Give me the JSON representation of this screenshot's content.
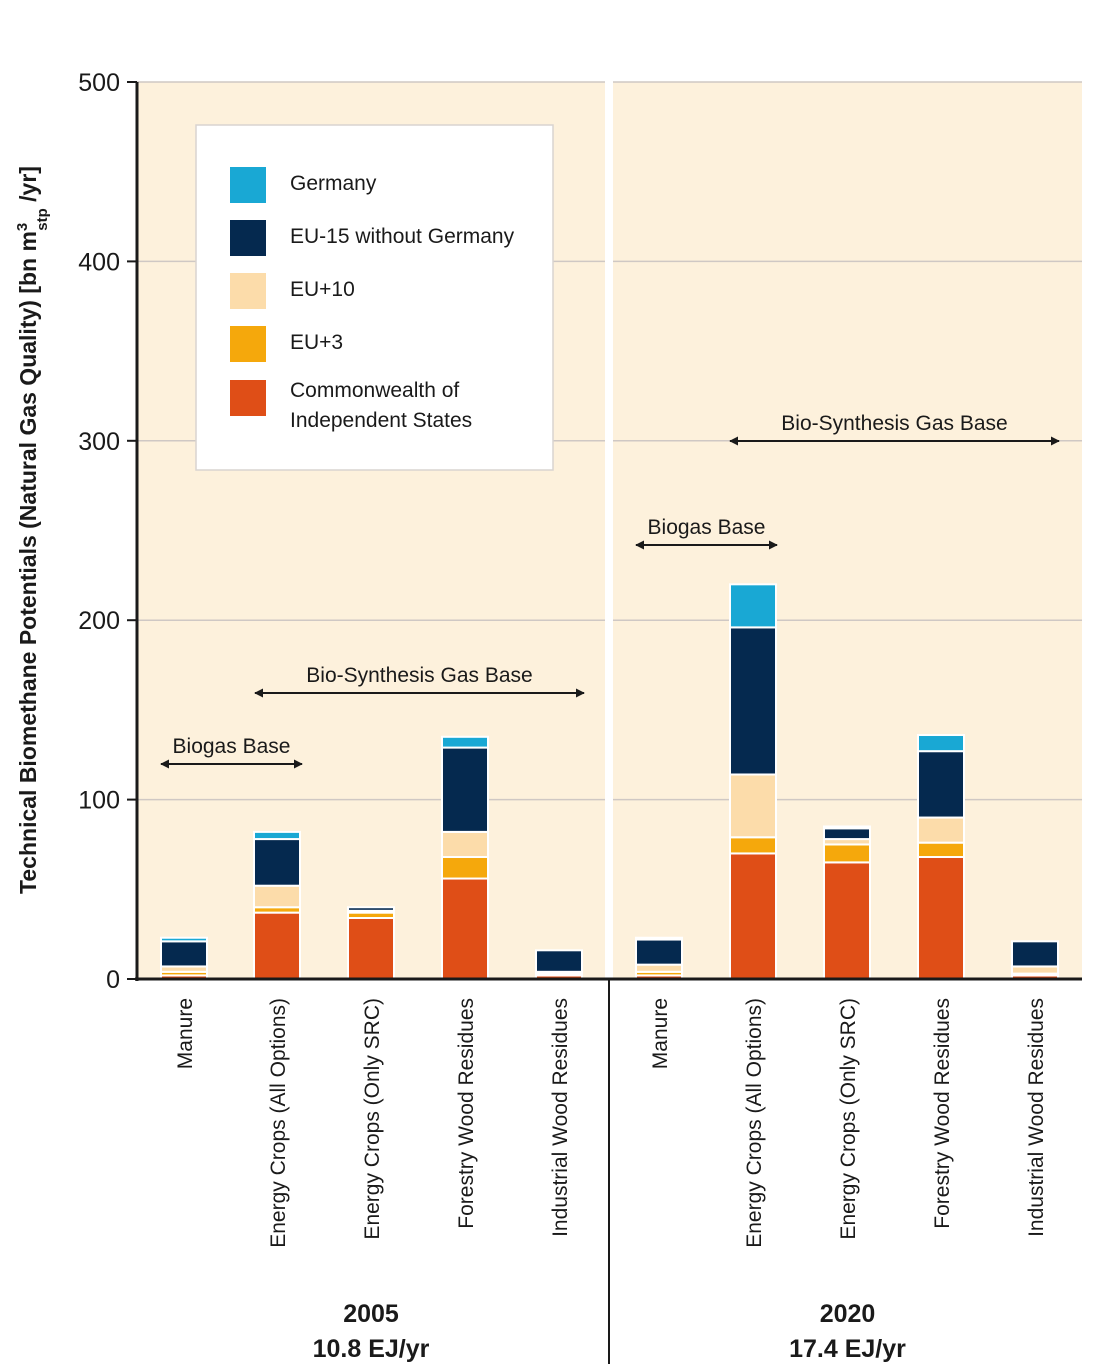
{
  "chart_data": {
    "type": "bar",
    "stacked": true,
    "ylabel": {
      "main": "Technical Biomethane Potentials (Natural Gas Quality) [bn m",
      "sup": "3",
      "sub": "stp",
      "tail": " /yr]"
    },
    "ylim": [
      0,
      500
    ],
    "yticks": [
      "0",
      "100",
      "200",
      "300",
      "400",
      "500"
    ],
    "grid": true,
    "legend_position": "upper-left",
    "categories": [
      "Manure",
      "Energy Crops (All Options)",
      "Energy Crops (Only SRC)",
      "Forestry Wood Residues",
      "Industrial Wood Residues"
    ],
    "series": [
      {
        "name": "Commonwealth of Independent States",
        "color": "#df4e17"
      },
      {
        "name": "EU+3",
        "color": "#f5a80c"
      },
      {
        "name": "EU+10",
        "color": "#fcdcaa"
      },
      {
        "name": "EU-15 without Germany",
        "color": "#05294f"
      },
      {
        "name": "Germany",
        "color": "#19a8d4"
      }
    ],
    "legend_order": [
      "Germany",
      "EU-15 without Germany",
      "EU+10",
      "EU+3",
      "Commonwealth of Independent States"
    ],
    "panels": [
      {
        "year": "2005",
        "total": "10.8 EJ/yr",
        "values": [
          [
            2,
            2,
            3,
            14,
            2
          ],
          [
            37,
            3,
            12,
            26,
            4
          ],
          [
            34,
            3,
            1,
            2,
            0
          ],
          [
            56,
            12,
            14,
            47,
            6
          ],
          [
            2,
            1,
            1,
            12,
            0
          ]
        ],
        "annotations": [
          {
            "label": "Biogas Base",
            "from": 0,
            "to": 1.5
          },
          {
            "label": "Bio-Synthesis Gas Base",
            "from": 1,
            "to": 4.5
          }
        ]
      },
      {
        "year": "2020",
        "total": "17.4 EJ/yr",
        "values": [
          [
            2,
            2,
            4,
            14,
            1
          ],
          [
            70,
            9,
            35,
            82,
            24
          ],
          [
            65,
            10,
            3,
            6,
            1
          ],
          [
            68,
            8,
            14,
            37,
            9
          ],
          [
            2,
            1,
            4,
            14,
            0
          ]
        ],
        "annotations": [
          {
            "label": "Biogas Base",
            "from": 0,
            "to": 1.5
          },
          {
            "label": "Bio-Synthesis Gas Base",
            "from": 1,
            "to": 4.5
          }
        ]
      }
    ]
  }
}
